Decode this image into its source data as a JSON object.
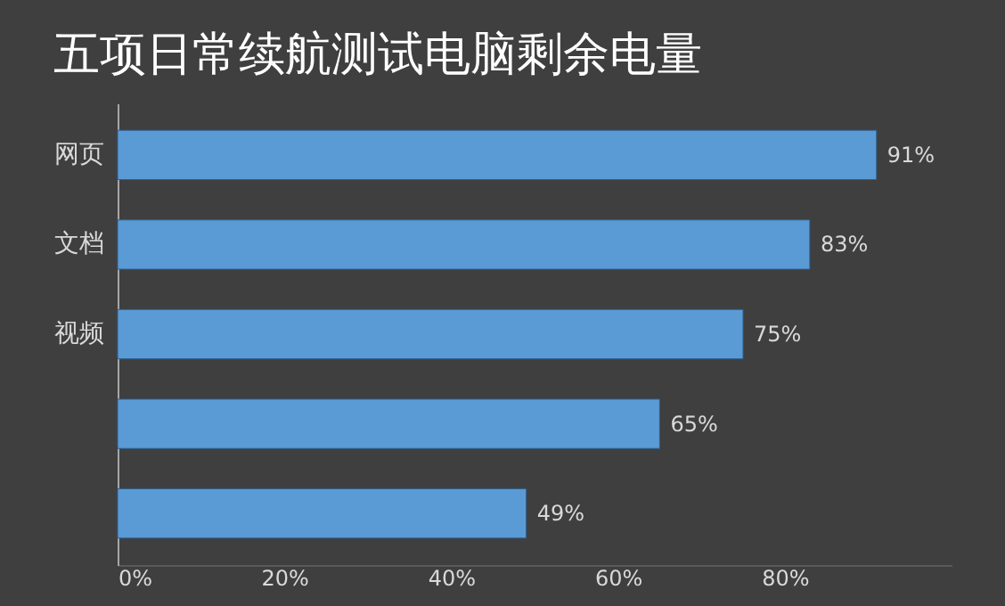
{
  "chart_data": {
    "type": "bar",
    "orientation": "horizontal",
    "title": "五项日常续航测试电脑剩余电量",
    "categories": [
      "网页",
      "文档",
      "视频",
      null,
      null
    ],
    "values": [
      91,
      83,
      75,
      65,
      49
    ],
    "value_labels": [
      "91%",
      "83%",
      "75%",
      "65%",
      "49%"
    ],
    "color": "#5b9bd5",
    "xlim": [
      0,
      100
    ],
    "xticks": [
      {
        "value": 0,
        "label": "0%"
      },
      {
        "value": 20,
        "label": "20%"
      },
      {
        "value": 40,
        "label": "40%"
      },
      {
        "value": 60,
        "label": "60%"
      },
      {
        "value": 80,
        "label": "80%"
      }
    ],
    "grid": false
  }
}
